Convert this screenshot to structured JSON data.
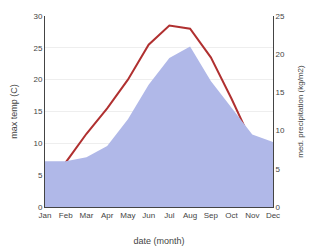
{
  "chart_data": {
    "type": "line",
    "categories": [
      "Jan",
      "Feb",
      "Mar",
      "Apr",
      "May",
      "Jun",
      "Jul",
      "Aug",
      "Sep",
      "Oct",
      "Nov",
      "Dec"
    ],
    "xlabel": "date (month)",
    "ylabel": "max temp (C)",
    "y2label": "med. precipitation (kg/m2)",
    "series": [
      {
        "type": "area",
        "axis": "y2",
        "color": "#b0b8e8",
        "values": [
          6.0,
          6.0,
          6.5,
          8.0,
          11.5,
          16.0,
          19.5,
          21.0,
          16.5,
          13.0,
          9.5,
          8.5
        ]
      },
      {
        "type": "line",
        "color": "#b03030",
        "values": [
          4.5,
          7.0,
          11.5,
          15.5,
          20.0,
          25.5,
          28.5,
          28.0,
          23.5,
          17.0,
          10.0,
          5.5
        ]
      }
    ],
    "ylim": [
      0,
      30
    ],
    "yticks": [
      0,
      5,
      10,
      15,
      20,
      25,
      30
    ],
    "y2lim": [
      0,
      25
    ],
    "y2ticks": [
      0,
      5,
      10,
      15,
      20,
      25
    ],
    "grid": true
  }
}
